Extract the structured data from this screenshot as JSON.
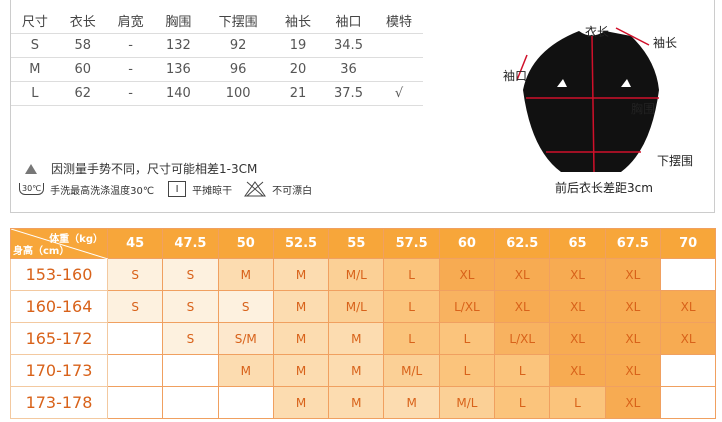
{
  "spec_table": {
    "headers": [
      "尺寸",
      "衣长",
      "肩宽",
      "胸围",
      "下摆围",
      "袖长",
      "袖口",
      "模特"
    ],
    "rows": [
      [
        "S",
        "58",
        "-",
        "132",
        "92",
        "19",
        "34.5",
        ""
      ],
      [
        "M",
        "60",
        "-",
        "136",
        "96",
        "20",
        "36",
        ""
      ],
      [
        "L",
        "62",
        "-",
        "140",
        "100",
        "21",
        "37.5",
        "√"
      ]
    ]
  },
  "note": "因测量手势不同，尺寸可能相差1-3CM",
  "care": {
    "wash_icon_text": "30℃",
    "wash": "手洗最高洗涤温度30℃",
    "dry_icon_text": "I",
    "dry": "平摊晾干",
    "bleach": "不可漂白"
  },
  "diagram": {
    "length": "衣长",
    "sleeve_length": "袖长",
    "cuff": "袖口",
    "chest": "胸围",
    "hem": "下摆围",
    "diff": "前后衣长差距3cm"
  },
  "grid": {
    "weight_label": "体重（kg）",
    "height_label": "身高（cm）",
    "weights": [
      "45",
      "47.5",
      "50",
      "52.5",
      "55",
      "57.5",
      "60",
      "62.5",
      "65",
      "67.5",
      "70"
    ],
    "rows": [
      {
        "height": "153-160",
        "sizes": [
          "S",
          "S",
          "M",
          "M",
          "M/L",
          "L",
          "XL",
          "XL",
          "XL",
          "XL",
          ""
        ]
      },
      {
        "height": "160-164",
        "sizes": [
          "S",
          "S",
          "S",
          "M",
          "M/L",
          "L",
          "L/XL",
          "XL",
          "XL",
          "XL",
          "XL"
        ]
      },
      {
        "height": "165-172",
        "sizes": [
          "",
          "S",
          "S/M",
          "M",
          "M",
          "L",
          "L",
          "L/XL",
          "XL",
          "XL",
          "XL"
        ]
      },
      {
        "height": "170-173",
        "sizes": [
          "",
          "",
          "M",
          "M",
          "M",
          "M/L",
          "L",
          "L",
          "XL",
          "XL",
          ""
        ]
      },
      {
        "height": "173-178",
        "sizes": [
          "",
          "",
          "",
          "M",
          "M",
          "M",
          "M/L",
          "L",
          "L",
          "XL",
          ""
        ]
      }
    ]
  },
  "colors": {
    "header": "#f7a63a",
    "text": "#d8621a",
    "S": "#fdf1df",
    "S/M": "#fde8cd",
    "M": "#fcdcb0",
    "M/L": "#fbd096",
    "L": "#fbc47c",
    "L/XL": "#f8b260",
    "XL": "#f7ab52"
  }
}
